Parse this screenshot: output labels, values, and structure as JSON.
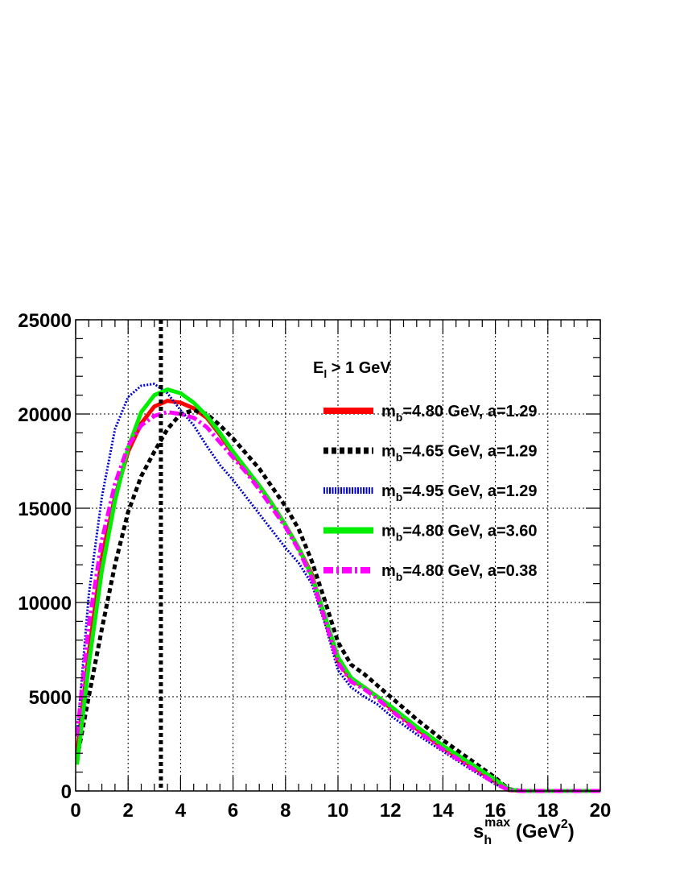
{
  "chart_data": {
    "type": "line",
    "xlim": [
      0,
      20
    ],
    "ylim": [
      0,
      25000
    ],
    "grid": true,
    "legend_placement": "top-right",
    "xlabel": {
      "main": "s",
      "sub": "h",
      "sup": "max",
      "unit_open": " (GeV",
      "unit_sup": "2",
      "unit_close": ")"
    },
    "ylabel": "",
    "x_ticks": [
      {
        "value": 0,
        "label": "0"
      },
      {
        "value": 2,
        "label": "2"
      },
      {
        "value": 4,
        "label": "4"
      },
      {
        "value": 6,
        "label": "6"
      },
      {
        "value": 8,
        "label": "8"
      },
      {
        "value": 10,
        "label": "10"
      },
      {
        "value": 12,
        "label": "12"
      },
      {
        "value": 14,
        "label": "14"
      },
      {
        "value": 16,
        "label": "16"
      },
      {
        "value": 18,
        "label": "18"
      },
      {
        "value": 20,
        "label": "20"
      }
    ],
    "y_ticks": [
      {
        "value": 0,
        "label": "0"
      },
      {
        "value": 5000,
        "label": "5000"
      },
      {
        "value": 10000,
        "label": "10000"
      },
      {
        "value": 15000,
        "label": "15000"
      },
      {
        "value": 20000,
        "label": "20000"
      },
      {
        "value": 25000,
        "label": "25000"
      }
    ],
    "legend_header": {
      "main": "E",
      "sub": "l",
      "rest": " > 1 GeV"
    },
    "vertical_line_x": 3.25,
    "series": [
      {
        "name": {
          "main": "m",
          "sub": "b",
          "rest": "=4.80 GeV, a=1.29"
        },
        "color": "#ff0000",
        "style": "solid",
        "width": 5,
        "x": [
          0.05,
          0.5,
          1,
          1.5,
          2,
          2.5,
          3,
          3.5,
          4,
          4.5,
          5,
          5.5,
          6,
          6.5,
          7,
          7.5,
          8,
          8.5,
          9,
          9.5,
          10,
          10.5,
          11,
          11.5,
          12,
          13,
          14,
          15,
          16,
          16.5,
          17,
          18,
          19,
          20
        ],
        "y": [
          1900,
          7300,
          12400,
          15600,
          18000,
          19500,
          20400,
          20700,
          20600,
          20300,
          19800,
          18900,
          17900,
          17000,
          16200,
          15200,
          14100,
          12900,
          11500,
          9200,
          6900,
          5900,
          5500,
          5000,
          4400,
          3300,
          2300,
          1400,
          500,
          50,
          0,
          0,
          0,
          0
        ]
      },
      {
        "name": {
          "main": "m",
          "sub": "b",
          "rest": "=4.65 GeV, a=1.29"
        },
        "color": "#000000",
        "style": "dashed",
        "width": 5,
        "x": [
          0.05,
          0.5,
          1,
          1.5,
          2,
          2.5,
          3,
          3.5,
          4,
          4.5,
          5,
          5.5,
          6,
          6.5,
          7,
          7.5,
          8,
          8.5,
          9,
          9.5,
          10,
          10.5,
          11,
          11.5,
          12,
          13,
          14,
          15,
          16,
          16.5,
          17,
          18,
          19,
          20
        ],
        "y": [
          1700,
          5000,
          8600,
          12000,
          14800,
          16700,
          18000,
          19200,
          20000,
          20200,
          20000,
          19400,
          18700,
          17900,
          17100,
          16100,
          15100,
          13900,
          12200,
          10100,
          7900,
          6700,
          6200,
          5600,
          5000,
          3800,
          2700,
          1700,
          700,
          100,
          0,
          0,
          0,
          0
        ]
      },
      {
        "name": {
          "main": "m",
          "sub": "b",
          "rest": "=4.95 GeV, a=1.29"
        },
        "color": "#0000cc",
        "style": "dotted",
        "width": 3,
        "x": [
          0.05,
          0.5,
          1,
          1.5,
          2,
          2.5,
          3,
          3.5,
          4,
          4.5,
          5,
          5.5,
          6,
          6.5,
          7,
          7.5,
          8,
          8.5,
          9,
          9.5,
          10,
          10.5,
          11,
          11.5,
          12,
          13,
          14,
          15,
          16,
          16.5,
          17,
          18,
          19,
          20
        ],
        "y": [
          2900,
          10400,
          15600,
          19200,
          20900,
          21500,
          21600,
          21100,
          20200,
          19400,
          18300,
          17300,
          16500,
          15600,
          14700,
          13800,
          12900,
          12100,
          11000,
          8900,
          6400,
          5500,
          5000,
          4600,
          4000,
          3000,
          2100,
          1200,
          350,
          30,
          0,
          0,
          0,
          0
        ]
      },
      {
        "name": {
          "main": "m",
          "sub": "b",
          "rest": "=4.80 GeV, a=3.60"
        },
        "color": "#00ee00",
        "style": "solid",
        "width": 5,
        "x": [
          0.05,
          0.5,
          1,
          1.5,
          2,
          2.5,
          3,
          3.5,
          4,
          4.5,
          5,
          5.5,
          6,
          6.5,
          7,
          7.5,
          8,
          8.5,
          9,
          9.5,
          10,
          10.5,
          11,
          11.5,
          12,
          13,
          14,
          15,
          16,
          16.5,
          17,
          18,
          19,
          20
        ],
        "y": [
          1400,
          6700,
          11700,
          15400,
          18200,
          20100,
          21000,
          21300,
          21100,
          20600,
          19900,
          19000,
          18000,
          17100,
          16200,
          15200,
          14100,
          12900,
          11400,
          9300,
          7100,
          6000,
          5500,
          5000,
          4500,
          3400,
          2400,
          1500,
          600,
          80,
          0,
          0,
          0,
          0
        ]
      },
      {
        "name": {
          "main": "m",
          "sub": "b",
          "rest": "=4.80 GeV, a=0.38"
        },
        "color": "#ff00ff",
        "style": "dashdot",
        "width": 5,
        "x": [
          0.05,
          0.5,
          1,
          1.5,
          2,
          2.5,
          3,
          3.5,
          4,
          4.5,
          5,
          5.5,
          6,
          6.5,
          7,
          7.5,
          8,
          8.5,
          9,
          9.5,
          10,
          10.5,
          11,
          11.5,
          12,
          13,
          14,
          15,
          16,
          16.5,
          17,
          18,
          19,
          20
        ],
        "y": [
          2900,
          8800,
          13300,
          16300,
          18300,
          19400,
          19900,
          20100,
          20000,
          19800,
          19300,
          18500,
          17700,
          16900,
          16000,
          15000,
          14000,
          12800,
          11300,
          9100,
          6800,
          5800,
          5400,
          4900,
          4300,
          3200,
          2200,
          1300,
          400,
          40,
          0,
          0,
          0,
          0
        ]
      }
    ]
  }
}
